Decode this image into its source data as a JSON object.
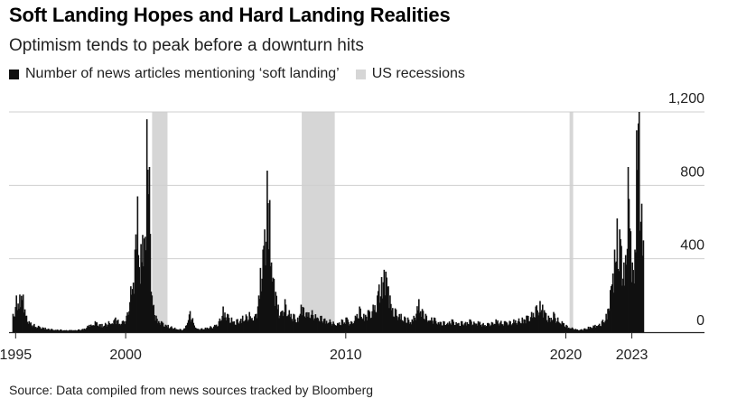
{
  "header": {
    "title": "Soft Landing Hopes and Hard Landing Realities",
    "subtitle": "Optimism tends to peak before a downturn hits"
  },
  "legend": {
    "items": [
      {
        "label": "Number of news articles mentioning ‘soft landing’",
        "color": "#111111"
      },
      {
        "label": "US recessions",
        "color": "#d6d6d6"
      }
    ]
  },
  "footer": {
    "source": "Source: Data compiled from news sources tracked by Bloomberg"
  },
  "chart_data": {
    "type": "bar",
    "title": "Soft Landing Hopes and Hard Landing Realities",
    "ylabel": "Number of news articles mentioning ‘soft landing’",
    "xlim": [
      1994.7,
      2026.3
    ],
    "ylim": [
      0,
      1200
    ],
    "y_ticks": [
      {
        "value": 1200,
        "label": "1,200"
      },
      {
        "value": 800,
        "label": "800"
      },
      {
        "value": 400,
        "label": "400"
      },
      {
        "value": 0,
        "label": "0"
      }
    ],
    "x_ticks": [
      {
        "value": 1995,
        "label": "1995"
      },
      {
        "value": 2000,
        "label": "2000"
      },
      {
        "value": 2010,
        "label": "2010"
      },
      {
        "value": 2020,
        "label": "2020"
      },
      {
        "value": 2023,
        "label": "2023"
      }
    ],
    "recessions": [
      {
        "start": 2001.2,
        "end": 2001.9
      },
      {
        "start": 2008.0,
        "end": 2009.5
      },
      {
        "start": 2020.17,
        "end": 2020.33
      }
    ],
    "grid": true,
    "series": [
      {
        "name": "Number of news articles mentioning ‘soft landing’",
        "color": "#111111",
        "points": [
          [
            1994.85,
            100
          ],
          [
            1995.0,
            200
          ],
          [
            1995.15,
            205
          ],
          [
            1995.3,
            205
          ],
          [
            1995.45,
            90
          ],
          [
            1995.6,
            60
          ],
          [
            1995.8,
            45
          ],
          [
            1996.0,
            35
          ],
          [
            1996.3,
            25
          ],
          [
            1996.6,
            18
          ],
          [
            1997.0,
            15
          ],
          [
            1997.5,
            12
          ],
          [
            1998.0,
            18
          ],
          [
            1998.3,
            40
          ],
          [
            1998.6,
            60
          ],
          [
            1998.9,
            45
          ],
          [
            1999.2,
            60
          ],
          [
            1999.5,
            80
          ],
          [
            1999.8,
            60
          ],
          [
            2000.0,
            90
          ],
          [
            2000.2,
            250
          ],
          [
            2000.3,
            270
          ],
          [
            2000.4,
            450
          ],
          [
            2000.5,
            740
          ],
          [
            2000.55,
            420
          ],
          [
            2000.65,
            480
          ],
          [
            2000.75,
            530
          ],
          [
            2000.85,
            520
          ],
          [
            2000.95,
            1160
          ],
          [
            2001.05,
            900
          ],
          [
            2001.15,
            200
          ],
          [
            2001.35,
            90
          ],
          [
            2001.6,
            60
          ],
          [
            2001.9,
            40
          ],
          [
            2002.2,
            25
          ],
          [
            2002.6,
            15
          ],
          [
            2002.9,
            115
          ],
          [
            2003.2,
            20
          ],
          [
            2003.6,
            25
          ],
          [
            2004.0,
            40
          ],
          [
            2004.2,
            60
          ],
          [
            2004.4,
            140
          ],
          [
            2004.6,
            100
          ],
          [
            2004.8,
            80
          ],
          [
            2005.0,
            70
          ],
          [
            2005.3,
            90
          ],
          [
            2005.6,
            110
          ],
          [
            2005.9,
            100
          ],
          [
            2006.0,
            200
          ],
          [
            2006.1,
            350
          ],
          [
            2006.2,
            450
          ],
          [
            2006.3,
            560
          ],
          [
            2006.4,
            880
          ],
          [
            2006.5,
            720
          ],
          [
            2006.6,
            380
          ],
          [
            2006.7,
            290
          ],
          [
            2006.8,
            220
          ],
          [
            2006.9,
            150
          ],
          [
            2007.0,
            110
          ],
          [
            2007.2,
            180
          ],
          [
            2007.4,
            120
          ],
          [
            2007.6,
            100
          ],
          [
            2007.8,
            80
          ],
          [
            2007.95,
            150
          ],
          [
            2009.6,
            50
          ],
          [
            2009.8,
            70
          ],
          [
            2010.0,
            80
          ],
          [
            2010.2,
            60
          ],
          [
            2010.4,
            90
          ],
          [
            2010.6,
            140
          ],
          [
            2010.8,
            100
          ],
          [
            2011.0,
            120
          ],
          [
            2011.2,
            150
          ],
          [
            2011.4,
            200
          ],
          [
            2011.5,
            260
          ],
          [
            2011.6,
            300
          ],
          [
            2011.7,
            340
          ],
          [
            2011.8,
            330
          ],
          [
            2011.9,
            250
          ],
          [
            2012.0,
            200
          ],
          [
            2012.2,
            130
          ],
          [
            2012.5,
            100
          ],
          [
            2012.8,
            80
          ],
          [
            2013.0,
            70
          ],
          [
            2013.3,
            180
          ],
          [
            2013.6,
            100
          ],
          [
            2014.0,
            80
          ],
          [
            2014.4,
            60
          ],
          [
            2014.8,
            70
          ],
          [
            2015.2,
            60
          ],
          [
            2015.6,
            70
          ],
          [
            2016.0,
            60
          ],
          [
            2016.4,
            50
          ],
          [
            2016.8,
            70
          ],
          [
            2017.2,
            60
          ],
          [
            2017.6,
            70
          ],
          [
            2018.0,
            80
          ],
          [
            2018.2,
            90
          ],
          [
            2018.4,
            110
          ],
          [
            2018.6,
            140
          ],
          [
            2018.8,
            170
          ],
          [
            2018.9,
            150
          ],
          [
            2019.0,
            120
          ],
          [
            2019.2,
            90
          ],
          [
            2019.4,
            110
          ],
          [
            2019.6,
            80
          ],
          [
            2019.8,
            60
          ],
          [
            2020.0,
            40
          ],
          [
            2020.5,
            15
          ],
          [
            2020.8,
            20
          ],
          [
            2021.0,
            30
          ],
          [
            2021.3,
            40
          ],
          [
            2021.6,
            60
          ],
          [
            2021.8,
            100
          ],
          [
            2022.0,
            230
          ],
          [
            2022.1,
            320
          ],
          [
            2022.2,
            450
          ],
          [
            2022.3,
            620
          ],
          [
            2022.4,
            560
          ],
          [
            2022.5,
            470
          ],
          [
            2022.6,
            380
          ],
          [
            2022.7,
            420
          ],
          [
            2022.8,
            900
          ],
          [
            2022.9,
            550
          ],
          [
            2023.0,
            380
          ],
          [
            2023.1,
            450
          ],
          [
            2023.2,
            1100
          ],
          [
            2023.3,
            1200
          ],
          [
            2023.4,
            700
          ],
          [
            2023.5,
            500
          ]
        ]
      }
    ]
  }
}
